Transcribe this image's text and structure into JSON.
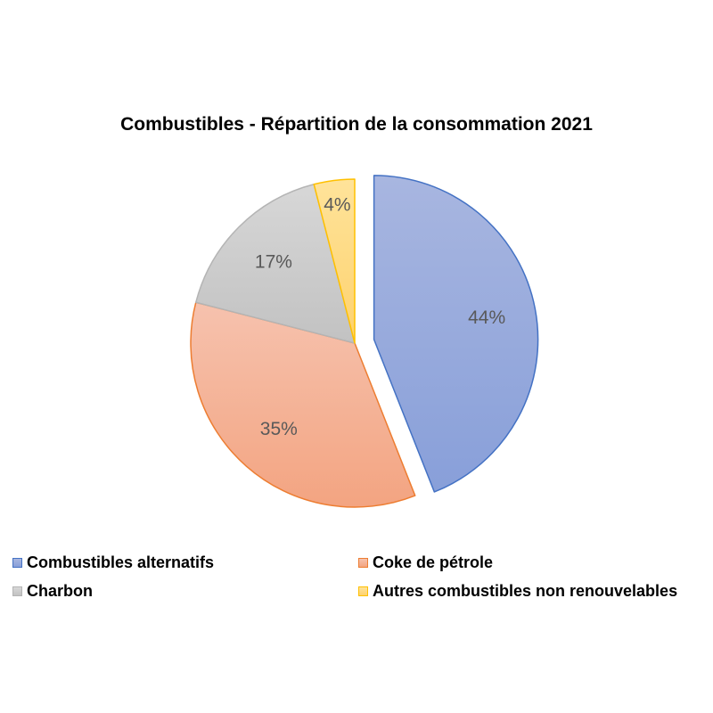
{
  "chart_data": {
    "type": "pie",
    "title": "Combustibles - Répartition de la consommation 2021",
    "categories": [
      "Combustibles alternatifs",
      "Coke de pétrole",
      "Charbon",
      "Autres combustibles non renouvelables"
    ],
    "values": [
      44,
      35,
      17,
      4
    ],
    "labels": [
      "44%",
      "35%",
      "17%",
      "4%"
    ],
    "exploded": [
      true,
      false,
      false,
      false
    ],
    "legend_position": "bottom",
    "colors": {
      "fill_top": [
        "#a8b6e0",
        "#f6c2ae",
        "#d7d7d7",
        "#ffe39a"
      ],
      "fill_bottom": [
        "#889fd9",
        "#f3a481",
        "#c2c2c2",
        "#fdd26e"
      ],
      "stroke": [
        "#4472c4",
        "#ed7d31",
        "#b4b4b4",
        "#ffc000"
      ],
      "label": "#595959"
    }
  }
}
